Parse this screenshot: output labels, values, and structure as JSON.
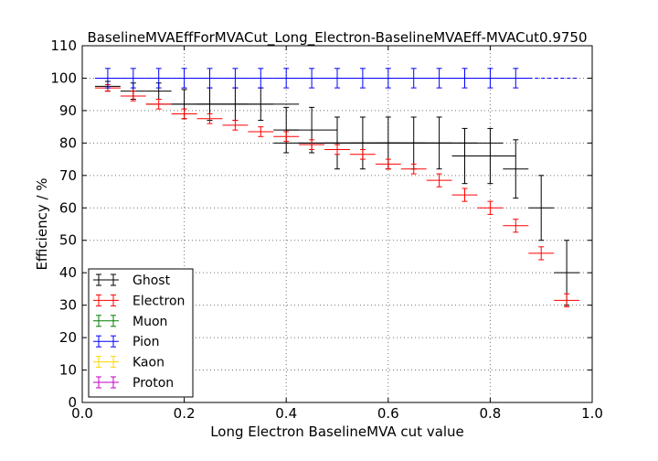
{
  "chart_data": {
    "type": "scatter",
    "title": "BaselineMVAEffForMVACut_Long_Electron-BaselineMVAEff-MVACut0.9750",
    "xlabel": "Long Electron BaselineMVA cut value",
    "ylabel": "Efficiency / %",
    "xlim": [
      0.0,
      1.0
    ],
    "ylim": [
      0,
      110
    ],
    "xticks": [
      "0.0",
      "0.2",
      "0.4",
      "0.6",
      "0.8",
      "1.0"
    ],
    "yticks": [
      "0",
      "10",
      "20",
      "30",
      "40",
      "50",
      "60",
      "70",
      "80",
      "90",
      "100",
      "110"
    ],
    "grid": true,
    "legend_position": "lower-left",
    "series": [
      {
        "name": "Ghost",
        "color": "#000000",
        "x": [
          0.05,
          0.1,
          0.15,
          0.2,
          0.25,
          0.3,
          0.35,
          0.4,
          0.45,
          0.5,
          0.55,
          0.6,
          0.65,
          0.7,
          0.75,
          0.8,
          0.85,
          0.9,
          0.95
        ],
        "xerr": [
          0.025,
          0.025,
          0.025,
          0.075,
          0.075,
          0.075,
          0.075,
          0.025,
          0.05,
          0.125,
          0.125,
          0.125,
          0.125,
          0.125,
          0.025,
          0.05,
          0.025,
          0.025,
          0.025
        ],
        "y": [
          97.5,
          96,
          96,
          92,
          92,
          92,
          92,
          84,
          84,
          80,
          80,
          80,
          80,
          80,
          76,
          76,
          72,
          60,
          40
        ],
        "yerr": [
          1.5,
          2.5,
          2.5,
          4.5,
          5,
          5,
          5,
          7,
          7,
          8,
          8,
          8,
          8,
          8,
          8.5,
          8.5,
          9,
          10,
          10
        ]
      },
      {
        "name": "Electron",
        "color": "#ff0000",
        "x": [
          0.05,
          0.1,
          0.15,
          0.2,
          0.25,
          0.3,
          0.35,
          0.4,
          0.45,
          0.5,
          0.55,
          0.6,
          0.65,
          0.7,
          0.75,
          0.8,
          0.85,
          0.9,
          0.95
        ],
        "xerr": [
          0.025,
          0.025,
          0.025,
          0.025,
          0.025,
          0.025,
          0.025,
          0.025,
          0.025,
          0.025,
          0.025,
          0.025,
          0.025,
          0.025,
          0.025,
          0.025,
          0.025,
          0.025,
          0.025
        ],
        "y": [
          97,
          94.5,
          92,
          89,
          87.5,
          85.5,
          83.5,
          82,
          79.5,
          78,
          76.5,
          73.5,
          72,
          68.5,
          64,
          60,
          54.5,
          46,
          31.5
        ],
        "yerr": [
          1,
          1.5,
          1.5,
          1.5,
          1.5,
          1.5,
          1.5,
          1.5,
          1.5,
          1.5,
          1.5,
          1.5,
          1.5,
          2,
          2,
          2,
          2,
          2,
          2
        ]
      },
      {
        "name": "Muon",
        "color": "#008000",
        "x": [],
        "xerr": [],
        "y": [],
        "yerr": []
      },
      {
        "name": "Pion",
        "color": "#0000ff",
        "x": [
          0.05,
          0.1,
          0.15,
          0.2,
          0.25,
          0.3,
          0.35,
          0.4,
          0.45,
          0.5,
          0.55,
          0.6,
          0.65,
          0.7,
          0.75,
          0.8,
          0.85,
          0.925
        ],
        "xerr": [
          0.025,
          0.025,
          0.025,
          0.025,
          0.025,
          0.025,
          0.025,
          0.025,
          0.025,
          0.025,
          0.025,
          0.025,
          0.025,
          0.025,
          0.025,
          0.025,
          0.025,
          0.05
        ],
        "y": [
          100,
          100,
          100,
          100,
          100,
          100,
          100,
          100,
          100,
          100,
          100,
          100,
          100,
          100,
          100,
          100,
          100,
          100
        ],
        "yerr": [
          3,
          3,
          3,
          3,
          3,
          3,
          3,
          3,
          3,
          3,
          3,
          3,
          3,
          3,
          3,
          3,
          3,
          0
        ]
      },
      {
        "name": "Kaon",
        "color": "#ffd700",
        "x": [],
        "xerr": [],
        "y": [],
        "yerr": []
      },
      {
        "name": "Proton",
        "color": "#bf00bf",
        "x": [],
        "xerr": [],
        "y": [],
        "yerr": []
      }
    ]
  }
}
